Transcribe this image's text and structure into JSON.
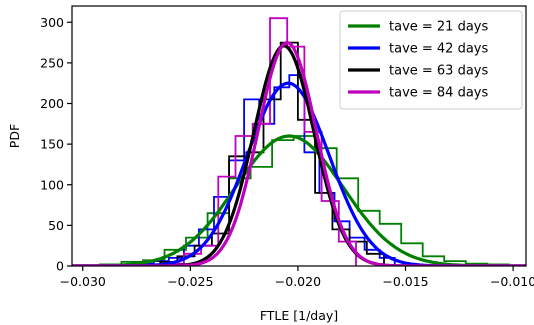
{
  "chart_data": {
    "type": "line",
    "xlabel": "FTLE [1/day]",
    "ylabel": "PDF",
    "xlim": [
      -0.0305,
      -0.0094
    ],
    "ylim": [
      0,
      320
    ],
    "xticks": [
      -0.03,
      -0.025,
      -0.02,
      -0.015,
      -0.01
    ],
    "xtick_labels": [
      "−0.030",
      "−0.025",
      "−0.020",
      "−0.015",
      "−0.010"
    ],
    "yticks": [
      0,
      50,
      100,
      150,
      200,
      250,
      300
    ],
    "ytick_labels": [
      "0",
      "50",
      "100",
      "150",
      "200",
      "250",
      "300"
    ],
    "grid": false,
    "legend_position": "top-right",
    "series": [
      {
        "name": "tave = 21 days",
        "color": "#008000",
        "curve": {
          "mean": -0.0204,
          "std": 0.0025,
          "peak": 160
        },
        "histogram": {
          "edges": [
            -0.0292,
            -0.0282,
            -0.0272,
            -0.0262,
            -0.0252,
            -0.0242,
            -0.0232,
            -0.0222,
            -0.0212,
            -0.0202,
            -0.0192,
            -0.0182,
            -0.0172,
            -0.0162,
            -0.0152,
            -0.0142,
            -0.0132,
            -0.0122,
            -0.0112,
            -0.0102
          ],
          "heights": [
            2,
            5,
            7,
            20,
            35,
            65,
            108,
            122,
            155,
            160,
            145,
            108,
            68,
            52,
            28,
            12,
            6,
            3,
            2
          ]
        }
      },
      {
        "name": "tave = 42 days",
        "color": "#0000ff",
        "curve": {
          "mean": -0.02045,
          "std": 0.0019,
          "peak": 225
        },
        "histogram": {
          "edges": [
            -0.0274,
            -0.0267,
            -0.026,
            -0.0253,
            -0.0246,
            -0.0239,
            -0.0232,
            -0.0225,
            -0.0218,
            -0.0211,
            -0.0204,
            -0.0197,
            -0.019,
            -0.0183,
            -0.0176,
            -0.0169,
            -0.0162,
            -0.0155
          ],
          "heights": [
            3,
            6,
            10,
            25,
            45,
            85,
            130,
            205,
            175,
            220,
            235,
            140,
            90,
            55,
            35,
            20,
            10
          ]
        }
      },
      {
        "name": "tave = 63 days",
        "color": "#000000",
        "curve": {
          "mean": -0.02065,
          "std": 0.0014,
          "peak": 271
        },
        "histogram": {
          "edges": [
            -0.0264,
            -0.0256,
            -0.0248,
            -0.024,
            -0.0232,
            -0.0224,
            -0.0216,
            -0.0208,
            -0.02,
            -0.0192,
            -0.0184,
            -0.0176,
            -0.0168,
            -0.016
          ],
          "heights": [
            5,
            12,
            25,
            40,
            135,
            140,
            205,
            275,
            180,
            90,
            45,
            30,
            15
          ]
        }
      },
      {
        "name": "tave = 84 days",
        "color": "#bf00bf",
        "curve": {
          "mean": -0.0205,
          "std": 0.00135,
          "peak": 275
        },
        "histogram": {
          "edges": [
            -0.0261,
            -0.0253,
            -0.0245,
            -0.0237,
            -0.0229,
            -0.0221,
            -0.0213,
            -0.0205,
            -0.0197,
            -0.0189,
            -0.0181,
            -0.0173
          ],
          "heights": [
            3,
            15,
            25,
            110,
            160,
            175,
            305,
            270,
            165,
            80,
            30
          ]
        }
      }
    ]
  }
}
